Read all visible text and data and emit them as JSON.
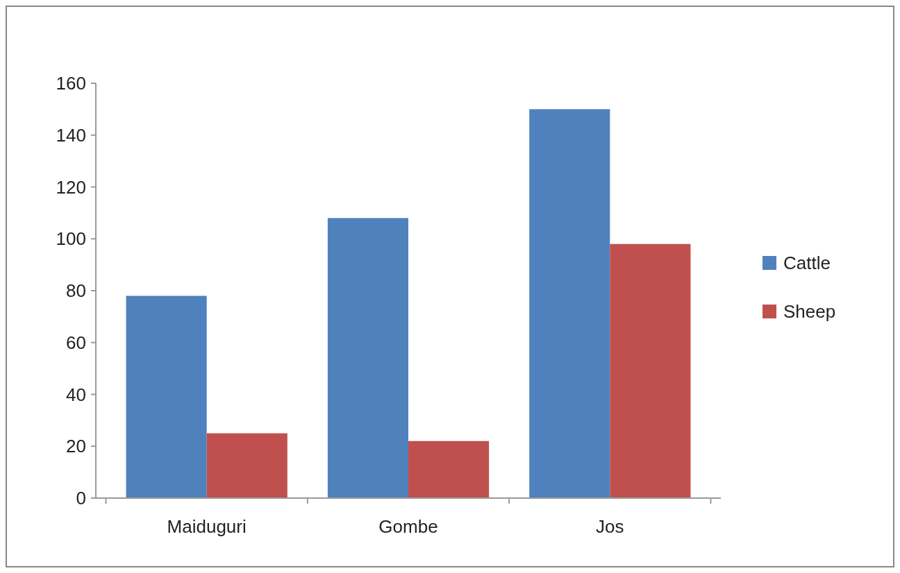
{
  "chart_data": {
    "type": "bar",
    "categories": [
      "Maiduguri",
      "Gombe",
      "Jos"
    ],
    "series": [
      {
        "name": "Cattle",
        "color": "#4f81bd",
        "values": [
          78,
          108,
          150
        ]
      },
      {
        "name": "Sheep",
        "color": "#c0504d",
        "values": [
          25,
          22,
          98
        ]
      }
    ],
    "ylim": [
      0,
      160
    ],
    "yticks": [
      0,
      20,
      40,
      60,
      80,
      100,
      120,
      140,
      160
    ],
    "grid": false,
    "legend": "right"
  }
}
